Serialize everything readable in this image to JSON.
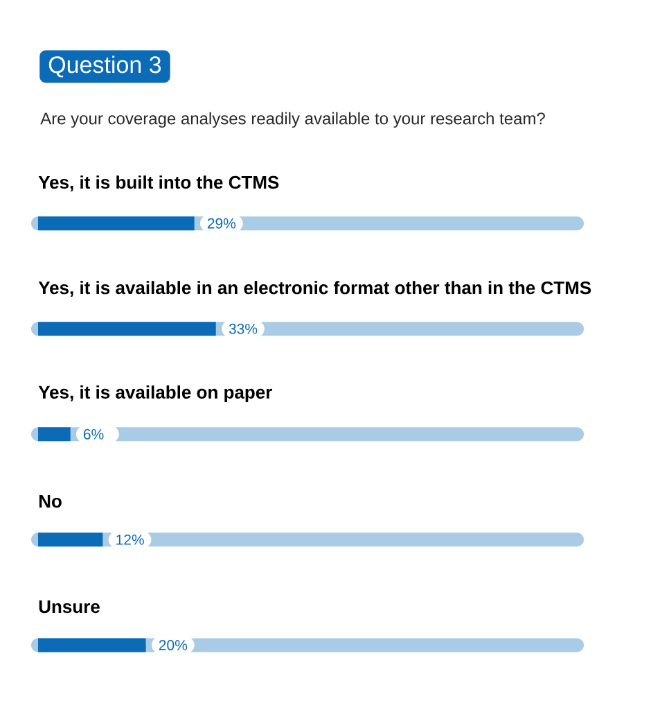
{
  "chart_data": {
    "type": "bar",
    "orientation": "horizontal",
    "title": "Question 3",
    "subtitle": "Are your coverage analyses readily available to your research team?",
    "categories": [
      "Yes, it is built into the CTMS",
      "Yes, it is available in an electronic format other than in the CTMS",
      "Yes, it is available on paper",
      "No",
      "Unsure"
    ],
    "values": [
      29,
      33,
      6,
      12,
      20
    ],
    "value_labels": [
      "29%",
      "33%",
      "6%",
      "12%",
      "20%"
    ],
    "color": "#0b6bb6"
  }
}
